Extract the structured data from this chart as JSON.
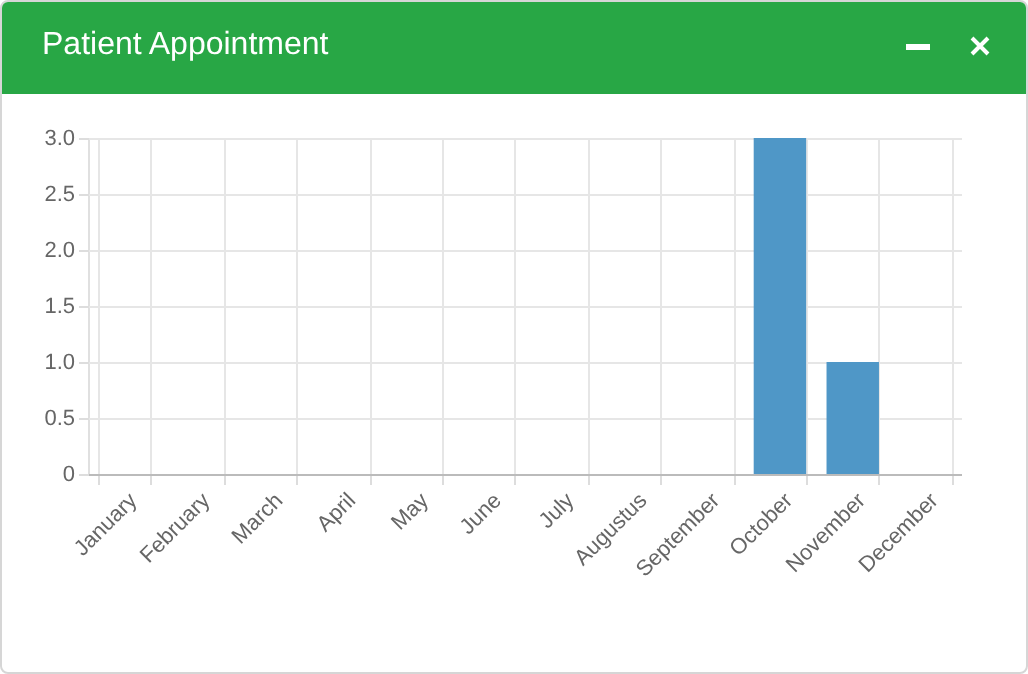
{
  "chart_data": {
    "type": "bar",
    "title": "Patient Appointment",
    "categories": [
      "January",
      "February",
      "March",
      "April",
      "May",
      "June",
      "July",
      "Augustus",
      "September",
      "October",
      "November",
      "December"
    ],
    "values": [
      0,
      0,
      0,
      0,
      0,
      0,
      0,
      0,
      0,
      3,
      1,
      0
    ],
    "color": "#4f97c7",
    "ylim": [
      0,
      3
    ],
    "yticks": [
      0,
      0.5,
      {
        "value": 1,
        "label": "1.0"
      },
      1.5,
      {
        "value": 2,
        "label": "2.0"
      },
      2.5,
      {
        "value": 3,
        "label": "3.0"
      }
    ],
    "grid": true
  }
}
